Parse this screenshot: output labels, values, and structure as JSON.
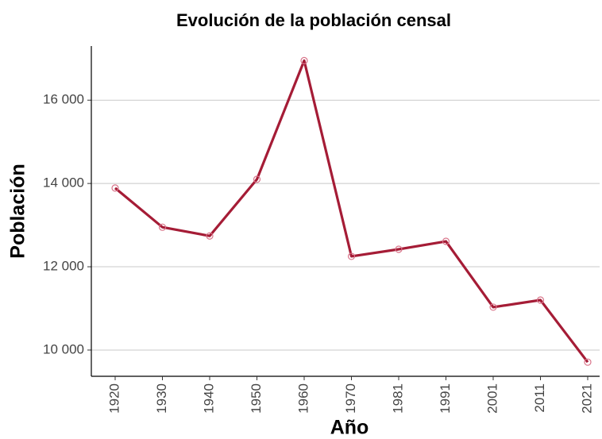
{
  "chart_data": {
    "type": "line",
    "title": "Evolución de la población censal",
    "x_label": "Año",
    "y_label": "Población",
    "categories": [
      "1920",
      "1930",
      "1940",
      "1950",
      "1960",
      "1970",
      "1981",
      "1991",
      "2001",
      "2011",
      "2021"
    ],
    "series": [
      {
        "name": "Población",
        "color": "#a51c36",
        "values": [
          13890,
          12950,
          12740,
          14100,
          16950,
          12250,
          12420,
          12610,
          11030,
          11200,
          9710
        ]
      }
    ],
    "ylim": [
      9370,
      17300
    ],
    "yticks": [
      {
        "value": 10000,
        "label": "10 000"
      },
      {
        "value": 12000,
        "label": "12 000"
      },
      {
        "value": 14000,
        "label": "14 000"
      },
      {
        "value": 16000,
        "label": "16 000"
      }
    ],
    "grid": true
  }
}
